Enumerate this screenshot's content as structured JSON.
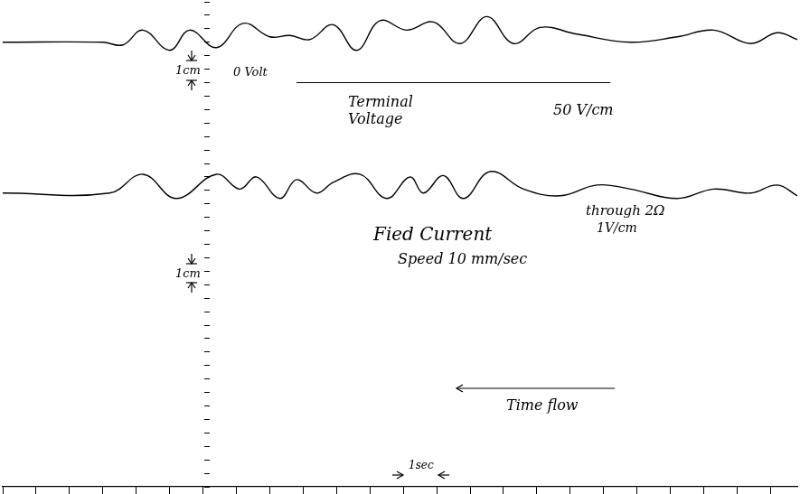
{
  "chart_data": {
    "type": "line",
    "tick_labels": false,
    "grid": false,
    "xlim": [
      0,
      23.8
    ],
    "xticks": [
      0,
      1,
      2,
      3,
      4,
      5,
      6,
      7,
      8,
      9,
      10,
      11,
      12,
      13,
      14,
      15,
      16,
      17,
      18,
      19,
      20,
      21,
      22,
      23
    ],
    "ylim": [
      -15,
      3
    ],
    "yticks": [
      -15,
      -14.5,
      -14,
      -13.5,
      -13,
      -12.5,
      -12,
      -11.5,
      -11,
      -10.5,
      -10,
      -9.5,
      -9,
      -8.5,
      -8,
      -7.5,
      -7,
      -6.5,
      -6,
      -5.5,
      -5,
      -4.5,
      -4,
      -3.5,
      -3,
      -2.5,
      -2,
      -1.5,
      -1,
      -0.5,
      0,
      0.5,
      1,
      1.5,
      2,
      2.5,
      3
    ],
    "series": [
      {
        "name": "Terminal Voltage",
        "color": "#000000",
        "x": [
          0,
          3.0,
          3.6,
          4.2,
          5.0,
          5.6,
          6.4,
          7.2,
          8.0,
          8.6,
          9.2,
          9.9,
          10.6,
          11.3,
          12.1,
          12.9,
          13.7,
          14.5,
          15.3,
          16.1,
          17.2,
          18.8,
          20.2,
          21.3,
          22.4,
          23.2,
          23.8
        ],
        "values": [
          1.5,
          1.5,
          1.4,
          1.95,
          1.2,
          1.95,
          1.3,
          2.2,
          1.7,
          1.75,
          1.6,
          2.15,
          1.2,
          2.3,
          1.95,
          2.25,
          1.45,
          2.45,
          1.45,
          2.05,
          1.8,
          1.5,
          1.7,
          1.95,
          1.45,
          1.85,
          1.6
        ]
      },
      {
        "name": "Fied Current",
        "color": "#000000",
        "x": [
          0,
          3.2,
          4.2,
          5.2,
          6.4,
          7.1,
          7.6,
          8.3,
          8.8,
          9.4,
          9.9,
          10.7,
          11.5,
          12.2,
          12.6,
          13.2,
          13.8,
          14.6,
          15.6,
          16.7,
          17.8,
          18.8,
          20.2,
          21.3,
          22.4,
          23.2,
          23.8
        ],
        "values": [
          -4.1,
          -4.1,
          -3.4,
          -4.3,
          -3.4,
          -3.95,
          -3.5,
          -4.3,
          -3.6,
          -4.1,
          -3.7,
          -3.4,
          -4.3,
          -3.5,
          -4.1,
          -3.45,
          -4.3,
          -3.3,
          -3.95,
          -4.2,
          -3.8,
          -3.95,
          -4.3,
          -3.95,
          -4.1,
          -3.8,
          -4.2
        ]
      }
    ],
    "reference_line": {
      "label": "0 Volt",
      "value": 0,
      "x": [
        8.8,
        18.2
      ]
    },
    "annotations": [
      "50 V/cm",
      "1cm",
      "1cm",
      "through 2Ω",
      "1V/cm",
      "Speed 10 mm/sec",
      "Time flow",
      "1sec"
    ]
  }
}
